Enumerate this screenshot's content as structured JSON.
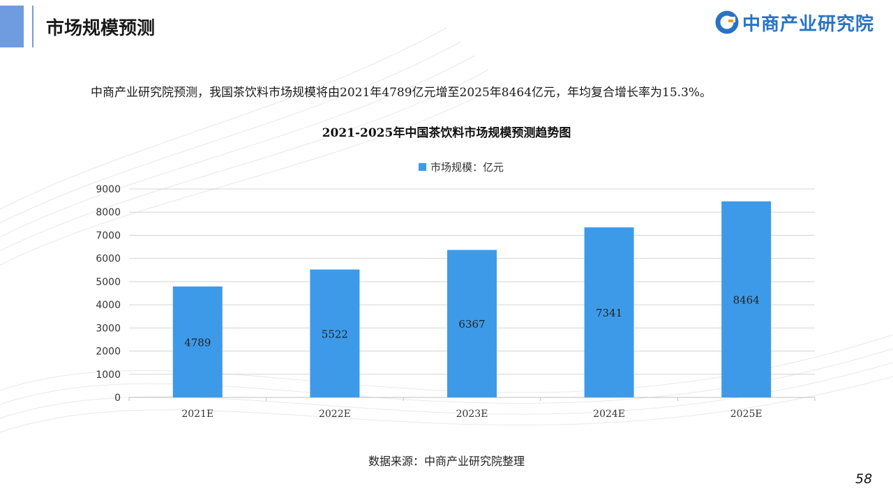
{
  "header": {
    "title": "市场规模预测",
    "logo_text": "中商产业研究院"
  },
  "colors": {
    "accent": "#6f9be0",
    "bar": "#3d9ae8",
    "logo": "#2a73c2"
  },
  "summary": "中商产业研究院预测，我国茶饮料市场规模将由2021年4789亿元增至2025年8464亿元，年均复合增长率为15.3%。",
  "chart_data": {
    "type": "bar",
    "title": "2021-2025年中国茶饮料市场规模预测趋势图",
    "categories": [
      "2021E",
      "2022E",
      "2023E",
      "2024E",
      "2025E"
    ],
    "series": [
      {
        "name": "市场规模：亿元",
        "values": [
          4789,
          5522,
          6367,
          7341,
          8464
        ]
      }
    ],
    "ylim": [
      0,
      9000
    ],
    "yticks": [
      0,
      1000,
      2000,
      3000,
      4000,
      5000,
      6000,
      7000,
      8000,
      9000
    ],
    "grid": true,
    "legend": "top-center",
    "data_labels": "inside-center"
  },
  "footer": {
    "source": "数据来源：中商产业研究院整理",
    "page_number": "58"
  }
}
